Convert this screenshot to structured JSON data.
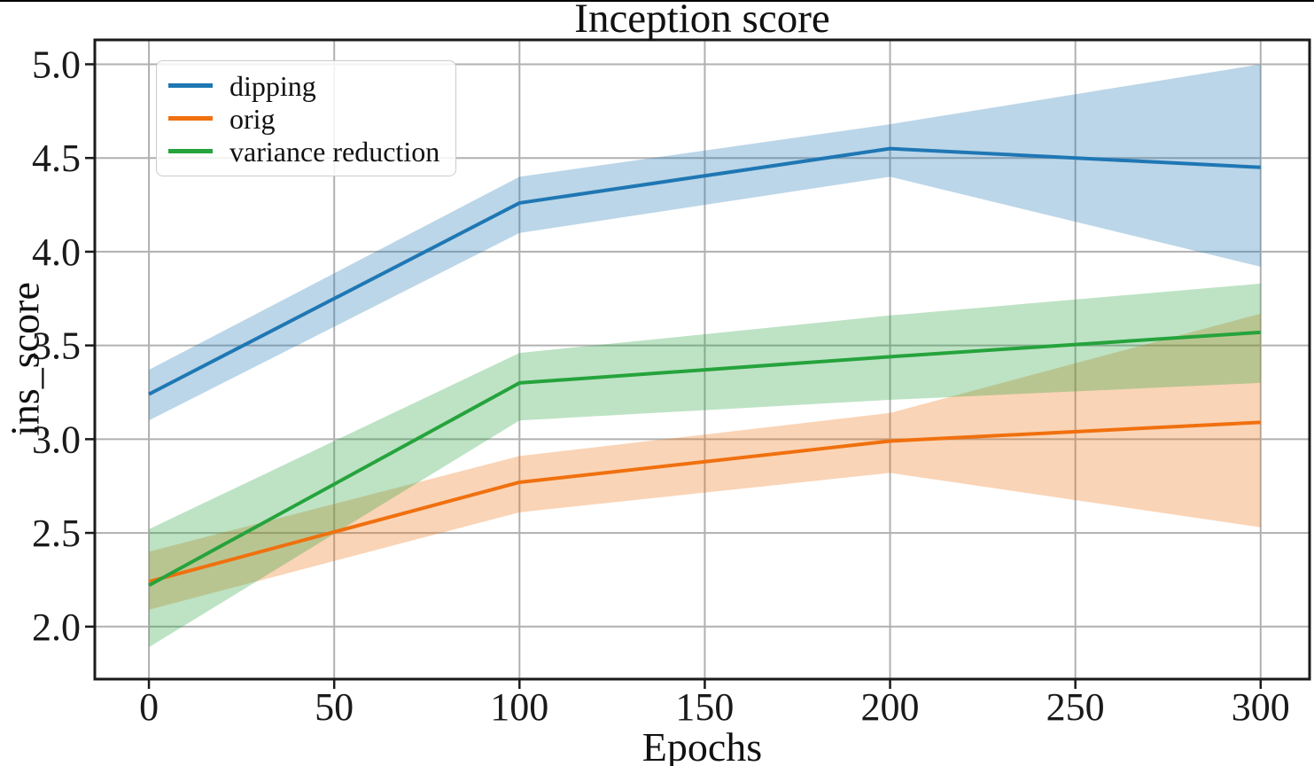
{
  "chart_data": {
    "type": "line",
    "title": "Inception score",
    "xlabel": "Epochs",
    "ylabel": "ins_score",
    "x": [
      0,
      100,
      200,
      300
    ],
    "series": [
      {
        "name": "dipping",
        "color": "#1f77b4",
        "values": [
          3.24,
          4.26,
          4.55,
          4.45
        ],
        "band_low": [
          3.1,
          4.1,
          4.4,
          3.92
        ],
        "band_high": [
          3.37,
          4.4,
          4.68,
          5.0
        ]
      },
      {
        "name": "orig",
        "color": "#f0700e",
        "values": [
          2.24,
          2.77,
          2.99,
          3.09
        ],
        "band_low": [
          2.09,
          2.61,
          2.82,
          2.53
        ],
        "band_high": [
          2.4,
          2.91,
          3.14,
          3.67
        ]
      },
      {
        "name": "variance reduction",
        "color": "#26a33c",
        "values": [
          2.22,
          3.3,
          3.44,
          3.57
        ],
        "band_low": [
          1.89,
          3.1,
          3.21,
          3.3
        ],
        "band_high": [
          2.52,
          3.46,
          3.66,
          3.83
        ]
      }
    ],
    "x_tick_values": [
      0,
      50,
      100,
      150,
      200,
      250,
      300
    ],
    "x_tick_labels": [
      "0",
      "50",
      "100",
      "150",
      "200",
      "250",
      "300"
    ],
    "y_tick_values": [
      2.0,
      2.5,
      3.0,
      3.5,
      4.0,
      4.5,
      5.0
    ],
    "y_tick_labels": [
      "2.0",
      "2.5",
      "3.0",
      "3.5",
      "4.0",
      "4.5",
      "5.0"
    ],
    "xlim": [
      -14.6,
      313.2
    ],
    "ylim": [
      1.72,
      5.13
    ],
    "band_opacity": 0.3,
    "grid": true,
    "legend_position": "upper left",
    "grid_color": "#b0b0b0",
    "spine_color": "#1a1a1a"
  }
}
